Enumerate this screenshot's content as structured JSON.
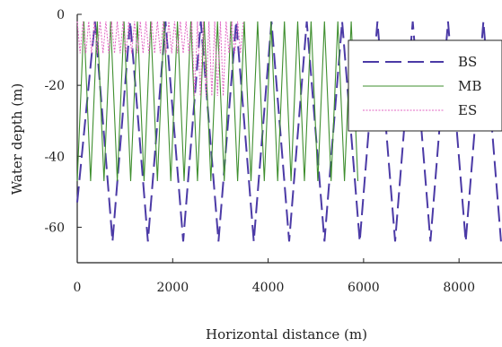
{
  "chart_data": {
    "type": "line",
    "xlabel": "Horizontal distance (m)",
    "ylabel": "Water depth (m)",
    "xlim": [
      0,
      8900
    ],
    "ylim": [
      -70,
      0
    ],
    "xticks": [
      0,
      2000,
      4000,
      6000,
      8000
    ],
    "yticks": [
      0,
      -20,
      -40,
      -60
    ],
    "grid": false,
    "legend_position": "top-right",
    "colors": {
      "BS": "#4b3aa6",
      "MB": "#3f8f2f",
      "ES": "#e266c3",
      "axis": "#222222"
    },
    "series": [
      {
        "name": "BS",
        "style": "dashed",
        "x": [
          0,
          370,
          740,
          1110,
          1480,
          1850,
          2220,
          2590,
          2960,
          3330,
          3700,
          4070,
          4440,
          4810,
          5180,
          5550,
          5920,
          6290,
          6660,
          7030,
          7400,
          7770,
          8140,
          8510,
          8880
        ],
        "y": [
          -53,
          -2,
          -64,
          -2,
          -64,
          -2,
          -64,
          -2,
          -64,
          -2,
          -64,
          -2,
          -64,
          -2,
          -64,
          -2,
          -64,
          -2,
          -64,
          -2,
          -64,
          -2,
          -64,
          -2,
          -64
        ]
      },
      {
        "name": "MB",
        "style": "solid",
        "x": [
          0,
          140,
          280,
          420,
          560,
          700,
          840,
          980,
          1120,
          1260,
          1400,
          1540,
          1680,
          1820,
          1960,
          2100,
          2240,
          2380,
          2520,
          2660,
          2800,
          2940,
          3080,
          3220,
          3360,
          3500,
          3640,
          3780,
          3920,
          4060,
          4200,
          4340,
          4480,
          4620,
          4760,
          4900,
          5040,
          5180,
          5320,
          5460,
          5600,
          5740,
          5880
        ],
        "y": [
          -47,
          -2,
          -47,
          -2,
          -47,
          -2,
          -47,
          -2,
          -47,
          -2,
          -47,
          -2,
          -47,
          -2,
          -47,
          -2,
          -47,
          -2,
          -47,
          -2,
          -47,
          -2,
          -47,
          -2,
          -47,
          -2,
          -47,
          -2,
          -47,
          -2,
          -47,
          -2,
          -47,
          -2,
          -47,
          -2,
          -47,
          -2,
          -47,
          -2,
          -47,
          -2,
          -47
        ]
      },
      {
        "name": "ES",
        "style": "dotted",
        "x": [
          0,
          60,
          120,
          180,
          240,
          300,
          360,
          420,
          480,
          540,
          600,
          660,
          720,
          780,
          840,
          900,
          960,
          1020,
          1080,
          1140,
          1200,
          1260,
          1320,
          1380,
          1440,
          1500,
          1560,
          1620,
          1680,
          1740,
          1800,
          1860,
          1920,
          1980,
          2040,
          2100,
          2160,
          2220,
          2280,
          2340,
          2400,
          2460,
          2520,
          2580,
          2640,
          2700,
          2760,
          2820,
          2880,
          2940,
          3000,
          3060,
          3120,
          3180,
          3240,
          3300,
          3360,
          3420,
          3480
        ],
        "y": [
          -2,
          -11,
          -2,
          -11,
          -2,
          -11,
          -2,
          -11,
          -2,
          -11,
          -2,
          -11,
          -2,
          -11,
          -2,
          -11,
          -2,
          -11,
          -2,
          -11,
          -2,
          -11,
          -2,
          -11,
          -2,
          -11,
          -2,
          -11,
          -2,
          -11,
          -2,
          -11,
          -2,
          -11,
          -2,
          -11,
          -2,
          -11,
          -2,
          -11,
          -2,
          -23,
          -2,
          -23,
          -2,
          -23,
          -2,
          -23,
          -2,
          -23,
          -2,
          -23,
          -2,
          -11,
          -2,
          -11,
          -2,
          -11,
          -2
        ]
      }
    ]
  }
}
